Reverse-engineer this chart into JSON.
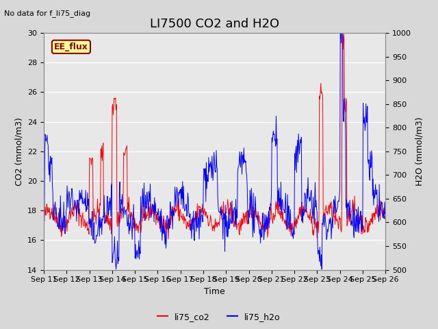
{
  "title": "LI7500 CO2 and H2O",
  "top_left_text": "No data for f_li75_diag",
  "xlabel": "Time",
  "ylabel_left": "CO2 (mmol/m3)",
  "ylabel_right": "H2O (mmol/m3)",
  "ylim_left": [
    14,
    30
  ],
  "ylim_right": [
    500,
    1000
  ],
  "xtick_labels": [
    "Sep 11",
    "Sep 12",
    "Sep 13",
    "Sep 14",
    "Sep 15",
    "Sep 16",
    "Sep 17",
    "Sep 18",
    "Sep 19",
    "Sep 20",
    "Sep 21",
    "Sep 22",
    "Sep 23",
    "Sep 24",
    "Sep 25",
    "Sep 26"
  ],
  "legend_entries": [
    "li75_co2",
    "li75_h2o"
  ],
  "legend_colors": [
    "red",
    "blue"
  ],
  "fig_bg_color": "#d8d8d8",
  "axes_bg_color": "#e8e8e8",
  "box_label": "EE_flux",
  "box_label_color": "#8B0000",
  "box_bg_color": "#ffff99",
  "title_fontsize": 13,
  "label_fontsize": 9,
  "tick_fontsize": 8,
  "yticks_left": [
    14,
    16,
    18,
    20,
    22,
    24,
    26,
    28,
    30
  ],
  "yticks_right": [
    500,
    550,
    600,
    650,
    700,
    750,
    800,
    850,
    900,
    950,
    1000
  ]
}
